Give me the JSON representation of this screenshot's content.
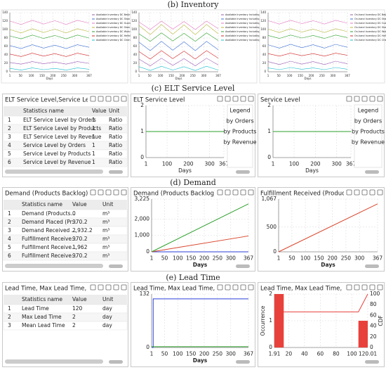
{
  "captions": [
    "(b) Inventory",
    "(c) ELT Service Level",
    "(d) Demand",
    "(e) Lead Time"
  ],
  "tables": [
    {
      "title": "ELT Service Level,Service Level",
      "columns": [
        "Statistics name",
        "Value",
        "Unit"
      ],
      "rows": [
        [
          1,
          "ELT Service Level by Orders",
          1,
          "Ratio"
        ],
        [
          2,
          "ELT Service Level by Products",
          1,
          "Ratio"
        ],
        [
          3,
          "ELT Service Level by Revenue",
          1,
          "Ratio"
        ],
        [
          4,
          "Service Level by Orders",
          1,
          "Ratio"
        ],
        [
          5,
          "Service Level by Products",
          1,
          "Ratio"
        ],
        [
          6,
          "Service Level by Revenue",
          1,
          "Ratio"
        ]
      ]
    },
    {
      "title": "Demand (Products Backlog), Demand",
      "columns": [
        "Statistics name",
        "Value",
        "Unit"
      ],
      "rows": [
        [
          1,
          "Demand (Products...",
          0,
          "m³"
        ],
        [
          2,
          "Demand Placed (Pr...",
          970.2,
          "m³"
        ],
        [
          3,
          "Demand Received ...",
          "2,932.2",
          "m³"
        ],
        [
          4,
          "Fulfillment Receive...",
          970.2,
          "m³"
        ],
        [
          5,
          "Fulfillment Receive...",
          "1,962",
          "m³"
        ],
        [
          6,
          "Fulfillment Receive...",
          970.2,
          "m³"
        ]
      ]
    },
    {
      "title": "Lead Time, Max Lead Time, Mean Lead",
      "columns": [
        "Statistics name",
        "Value",
        "Unit"
      ],
      "rows": [
        [
          1,
          "Lead Time",
          120,
          "day"
        ],
        [
          2,
          "Max Lead Time",
          2,
          "day"
        ],
        [
          3,
          "Mean Lead Time",
          2,
          "day"
        ]
      ]
    }
  ],
  "chart_data": [
    {
      "type": "line",
      "xlabel": "Days",
      "x": [
        1,
        53,
        105,
        157,
        209,
        261,
        313,
        367
      ],
      "xlim": [
        1,
        367
      ],
      "xticks": [
        1,
        50,
        100,
        150,
        200,
        250,
        300,
        367
      ],
      "ylim": [
        0,
        140
      ],
      "yticks": [
        0,
        20,
        40,
        60,
        80,
        100,
        120,
        140
      ],
      "grid": true,
      "legend": "right",
      "series": [
        {
          "name": "Available Inventory DC Beijing",
          "color": "#9b59b6",
          "values": [
            22,
            18,
            24,
            19,
            23,
            18,
            24,
            20
          ]
        },
        {
          "name": "Available Inventory DC Shanghai",
          "color": "#3b6fd6",
          "values": [
            62,
            55,
            64,
            56,
            63,
            55,
            64,
            58
          ]
        },
        {
          "name": "Available Inventory DC Guangzhou",
          "color": "#e377c2",
          "values": [
            120,
            112,
            122,
            113,
            121,
            112,
            122,
            115
          ]
        },
        {
          "name": "Available Inventory DC Shenzhen",
          "color": "#b5b53a",
          "values": [
            100,
            92,
            102,
            93,
            101,
            92,
            102,
            95
          ]
        },
        {
          "name": "Available Inventory DC Wuhan",
          "color": "#2ca02c",
          "values": [
            85,
            78,
            87,
            79,
            86,
            78,
            87,
            80
          ]
        },
        {
          "name": "Available Inventory DC Hefei",
          "color": "#d62728",
          "values": [
            42,
            36,
            44,
            37,
            43,
            36,
            44,
            38
          ]
        },
        {
          "name": "Available Inventory DC Chengdu",
          "color": "#17becf",
          "values": [
            8,
            4,
            9,
            5,
            8,
            4,
            9,
            6
          ]
        }
      ]
    },
    {
      "type": "line",
      "xlabel": "Days",
      "x": [
        1,
        53,
        105,
        157,
        209,
        261,
        313,
        367
      ],
      "xlim": [
        1,
        367
      ],
      "xticks": [
        1,
        50,
        100,
        150,
        200,
        250,
        300,
        367
      ],
      "ylim": [
        0,
        140
      ],
      "yticks": [
        0,
        20,
        40,
        60,
        80,
        100,
        120,
        140
      ],
      "grid": true,
      "legend": "right",
      "series": [
        {
          "name": "Available Inventory Including Backlog DC Beijing",
          "color": "#9b59b6",
          "values": [
            30,
            14,
            32,
            15,
            31,
            14,
            32,
            16
          ]
        },
        {
          "name": "Available Inventory Including Backlog DC Shanghai",
          "color": "#3b6fd6",
          "values": [
            70,
            50,
            72,
            51,
            71,
            50,
            72,
            52
          ]
        },
        {
          "name": "Available Inventory Including Backlog DC Guangzhou",
          "color": "#e377c2",
          "values": [
            118,
            100,
            120,
            101,
            119,
            100,
            120,
            102
          ]
        },
        {
          "name": "Available Inventory Including Backlog DC Shenzhen",
          "color": "#b5b53a",
          "values": [
            110,
            88,
            112,
            89,
            111,
            88,
            112,
            90
          ]
        },
        {
          "name": "Available Inventory Including Backlog DC Wuhan",
          "color": "#2ca02c",
          "values": [
            90,
            72,
            92,
            73,
            91,
            72,
            92,
            74
          ]
        },
        {
          "name": "Available Inventory Including Backlog DC Hefei",
          "color": "#d62728",
          "values": [
            48,
            30,
            50,
            31,
            49,
            30,
            50,
            32
          ]
        },
        {
          "name": "Available Inventory Including Backlog DC Chengdu",
          "color": "#17becf",
          "values": [
            12,
            3,
            13,
            4,
            12,
            3,
            13,
            4
          ]
        }
      ]
    },
    {
      "type": "line",
      "xlabel": "Days",
      "x": [
        1,
        53,
        105,
        157,
        209,
        261,
        313,
        367
      ],
      "xlim": [
        1,
        367
      ],
      "xticks": [
        1,
        50,
        100,
        150,
        200,
        250,
        300,
        367
      ],
      "ylim": [
        0,
        140
      ],
      "yticks": [
        0,
        20,
        40,
        60,
        80,
        100,
        120,
        140
      ],
      "grid": true,
      "legend": "right",
      "series": [
        {
          "name": "On-hand Inventory DC Beijing",
          "color": "#9b59b6",
          "values": [
            24,
            17,
            25,
            18,
            24,
            17,
            25,
            19
          ]
        },
        {
          "name": "On-hand Inventory DC Shanghai",
          "color": "#3b6fd6",
          "values": [
            64,
            56,
            65,
            57,
            64,
            56,
            65,
            58
          ]
        },
        {
          "name": "On-hand Inventory DC Guangzhou",
          "color": "#e377c2",
          "values": [
            121,
            113,
            122,
            114,
            121,
            113,
            122,
            115
          ]
        },
        {
          "name": "On-hand Inventory DC Shenzhen",
          "color": "#b5b53a",
          "values": [
            101,
            93,
            102,
            94,
            101,
            93,
            102,
            95
          ]
        },
        {
          "name": "On-hand Inventory DC Wuhan",
          "color": "#2ca02c",
          "values": [
            86,
            79,
            87,
            80,
            86,
            79,
            87,
            81
          ]
        },
        {
          "name": "On-hand Inventory DC Hefei",
          "color": "#d62728",
          "values": [
            43,
            37,
            44,
            38,
            43,
            37,
            44,
            39
          ]
        },
        {
          "name": "On-hand Inventory DC Chengdu",
          "color": "#17becf",
          "values": [
            9,
            5,
            10,
            6,
            9,
            5,
            10,
            6
          ]
        }
      ]
    },
    {
      "type": "line",
      "title": "ELT Service Level",
      "xlabel": "Days",
      "x": [
        1,
        367
      ],
      "xlim": [
        1,
        367
      ],
      "xticks": [
        1,
        100,
        200,
        300,
        367
      ],
      "ylim": [
        0,
        2
      ],
      "yticks": [
        0,
        1,
        2
      ],
      "grid": true,
      "legend": "right",
      "legend_title": "Legend",
      "series": [
        {
          "name": "by Orders",
          "color": "#2b3fd6",
          "values": [
            1,
            1
          ]
        },
        {
          "name": "by Products",
          "color": "#d9452b",
          "values": [
            1,
            1
          ]
        },
        {
          "name": "by Revenue",
          "color": "#2ca02c",
          "values": [
            1,
            1
          ]
        }
      ]
    },
    {
      "type": "line",
      "title": "Service Level",
      "xlabel": "Days",
      "x": [
        1,
        367
      ],
      "xlim": [
        1,
        367
      ],
      "xticks": [
        1,
        100,
        200,
        300,
        367
      ],
      "ylim": [
        0,
        2
      ],
      "yticks": [
        0,
        1,
        2
      ],
      "grid": true,
      "legend": "right",
      "legend_title": "Legend",
      "series": [
        {
          "name": "by Orders",
          "color": "#2b3fd6",
          "values": [
            1,
            1
          ]
        },
        {
          "name": "by Products",
          "color": "#d9452b",
          "values": [
            1,
            1
          ]
        },
        {
          "name": "by Revenue",
          "color": "#2ca02c",
          "values": [
            1,
            1
          ]
        }
      ]
    },
    {
      "type": "line",
      "title": "Demand (Products Backlog), Dema",
      "xlabel": "Days",
      "x": [
        1,
        367
      ],
      "xlim": [
        1,
        367
      ],
      "xticks": [
        1,
        50,
        100,
        150,
        200,
        250,
        300,
        367
      ],
      "ylim": [
        0,
        3225
      ],
      "yticks": [
        0,
        {
          "value": 1000,
          "label": "1,000"
        },
        {
          "value": 2000,
          "label": "2,000"
        },
        {
          "value": 3225,
          "label": "3,225"
        }
      ],
      "grid": true,
      "series": [
        {
          "color": "#2b3fd6",
          "values": [
            0,
            0
          ]
        },
        {
          "color": "#d9452b",
          "values": [
            0,
            970.2
          ]
        },
        {
          "color": "#2ca02c",
          "values": [
            0,
            2932.2
          ]
        }
      ]
    },
    {
      "type": "line",
      "title": "Fulfillment Received (Products) by",
      "xlabel": "Days",
      "x": [
        1,
        367
      ],
      "xlim": [
        1,
        367
      ],
      "xticks": [
        1,
        50,
        100,
        150,
        200,
        250,
        300,
        367
      ],
      "ylim": [
        0,
        1067
      ],
      "yticks": [
        0,
        500,
        {
          "value": 1067,
          "label": "1,067"
        }
      ],
      "grid": true,
      "series": [
        {
          "color": "#d9452b",
          "values": [
            0,
            970.2
          ]
        }
      ]
    },
    {
      "type": "line",
      "title": "Lead Time, Max Lead Time, Mean Le",
      "xlabel": "Days",
      "x": [
        1,
        7,
        7,
        367
      ],
      "xlim": [
        1,
        367
      ],
      "xticks": [
        1,
        50,
        100,
        150,
        200,
        250,
        300,
        367
      ],
      "ylim": [
        0,
        132
      ],
      "yticks": [
        0,
        132
      ],
      "grid": true,
      "series": [
        {
          "color": "#2b3fd6",
          "values": [
            0,
            0,
            120,
            120
          ]
        },
        {
          "color": "#2ca02c",
          "values": [
            2,
            2,
            2,
            2
          ]
        }
      ]
    },
    {
      "type": "histogram",
      "title": "Lead Time, Max Lead Time, Mean Lead",
      "ylabel": "Occurrence",
      "y2label": "CDF",
      "color": "#e8413b",
      "bins": [
        1.91,
        13.72,
        25.53,
        37.34,
        49.15,
        60.96,
        72.77,
        84.58,
        96.39,
        108.2,
        120.01
      ],
      "values": [
        2,
        0,
        0,
        0,
        0,
        0,
        0,
        0,
        0,
        1
      ],
      "xlim": [
        1.91,
        120.01
      ],
      "xticks": [
        1.91,
        20,
        40,
        60,
        80,
        100,
        120.01
      ],
      "ylim": [
        0,
        2
      ],
      "yticks": [
        0,
        1,
        2
      ],
      "y2lim": [
        0,
        100
      ],
      "y2ticks": [
        0,
        20,
        40,
        60,
        80,
        100
      ],
      "grid": true,
      "series": [
        {
          "axis": "y2",
          "color": "#e8413b",
          "x": [
            1.91,
            108.2,
            120.01
          ],
          "values": [
            66.67,
            66.67,
            100
          ]
        }
      ]
    }
  ]
}
